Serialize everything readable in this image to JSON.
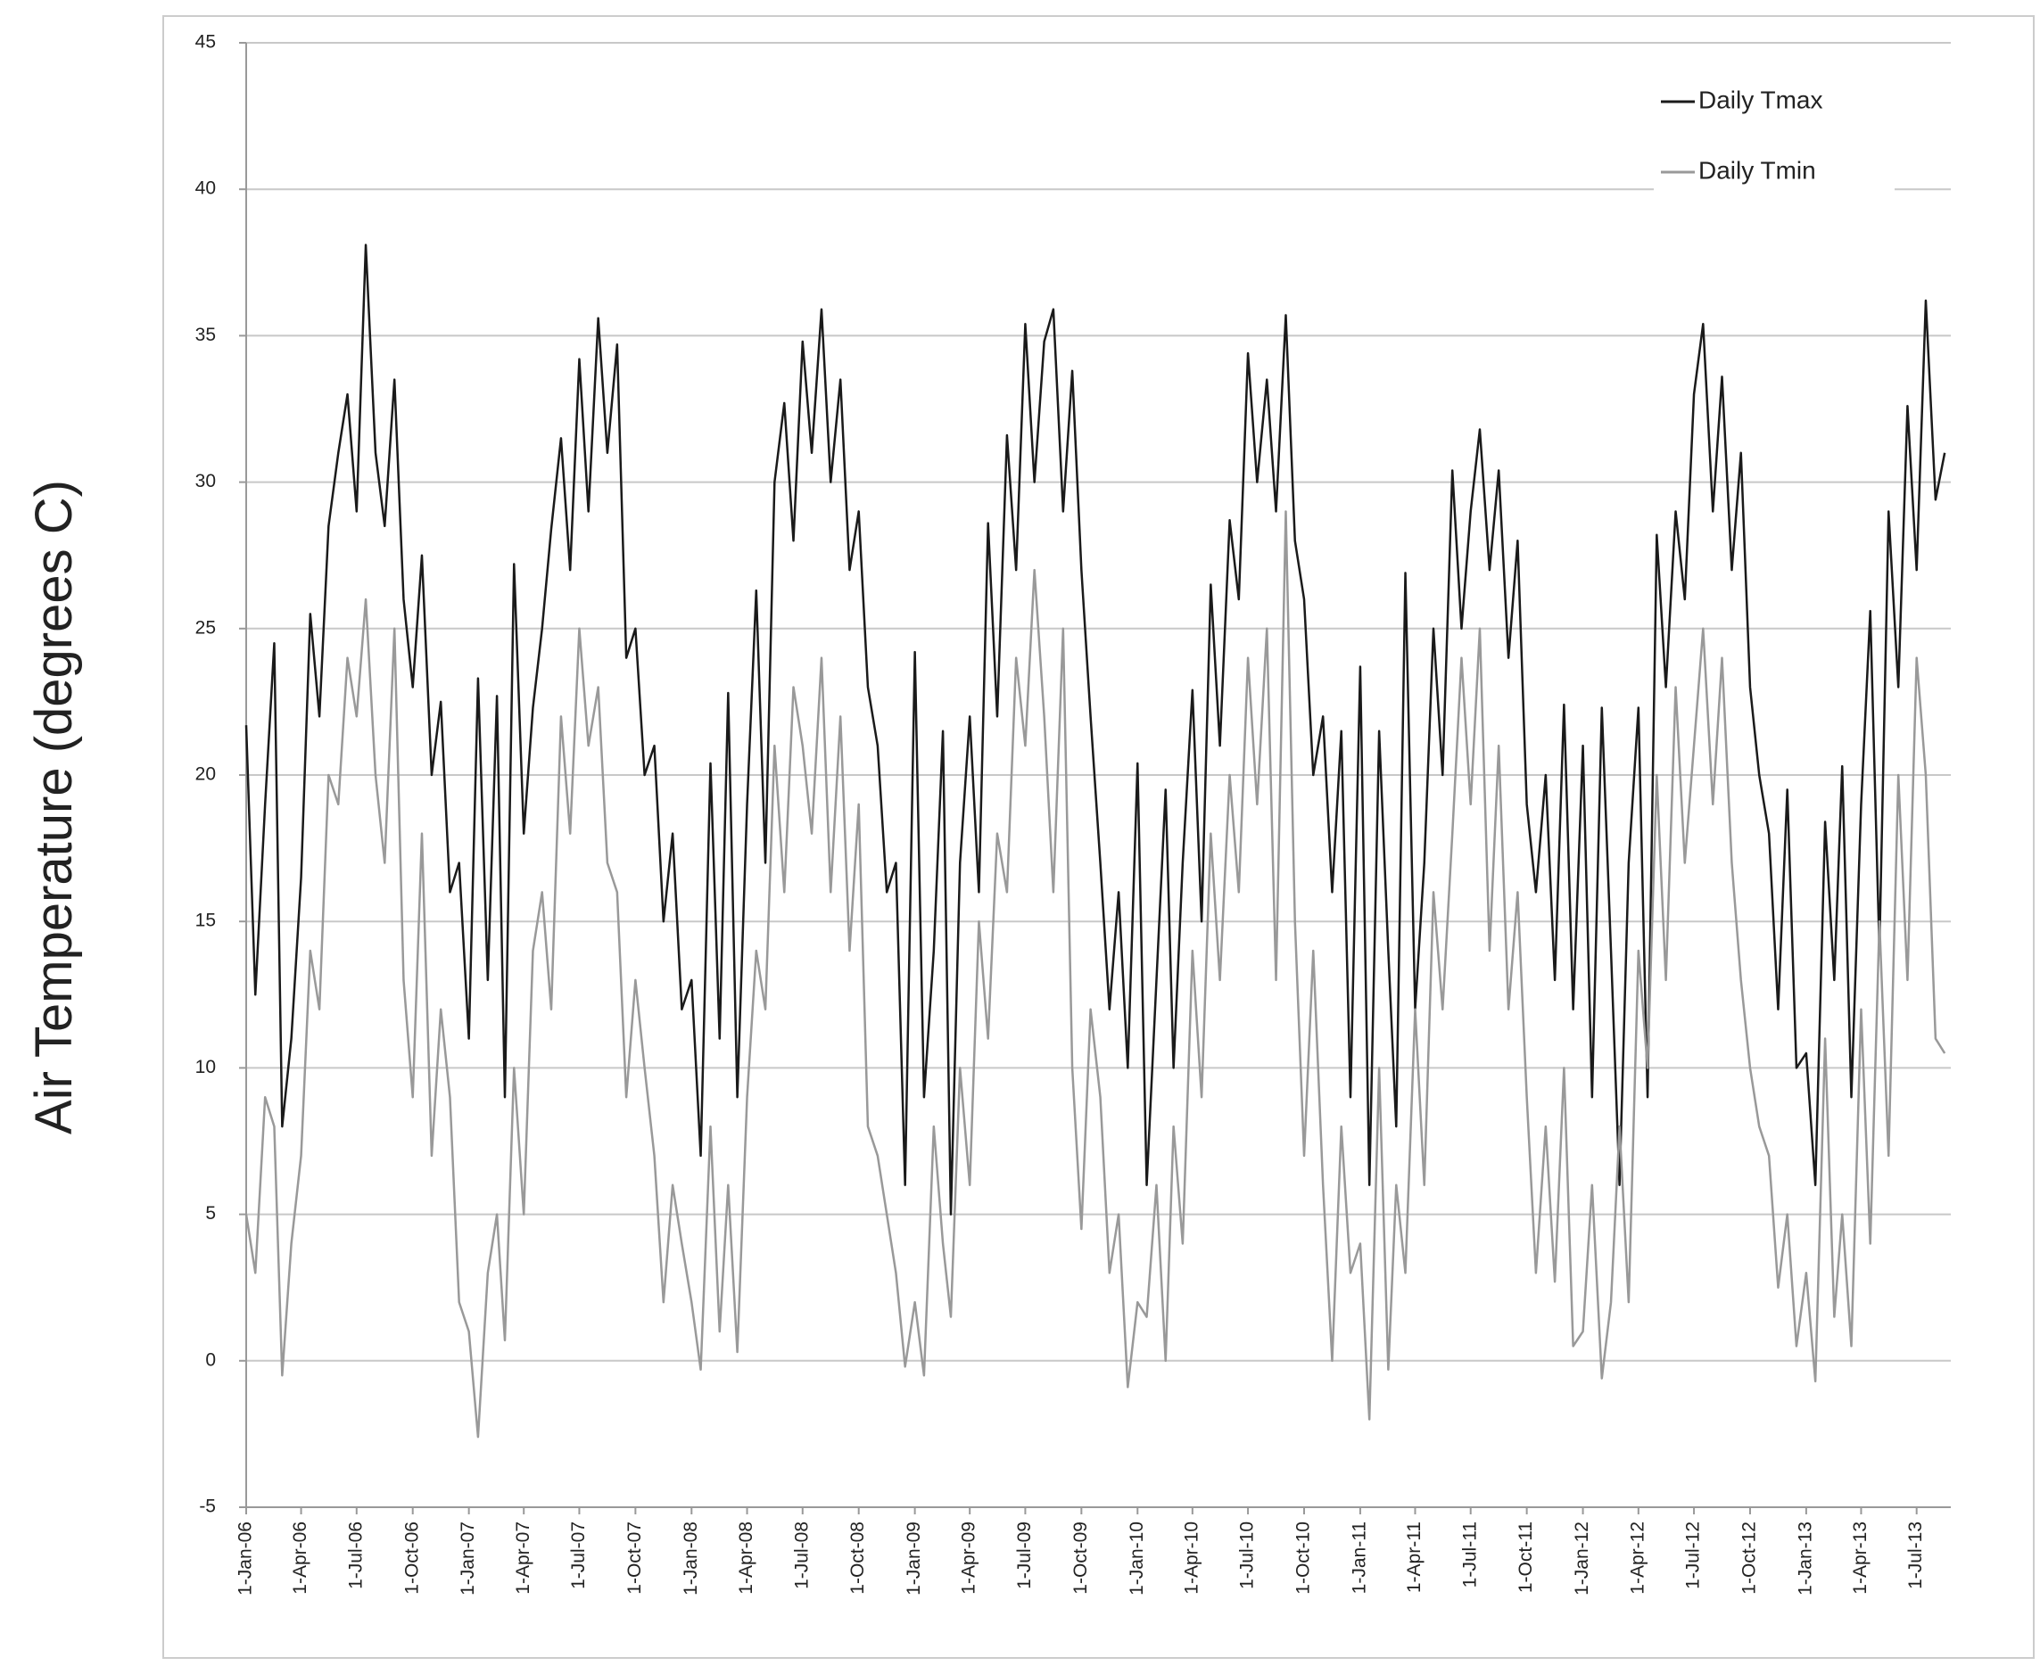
{
  "chart_data": {
    "type": "line",
    "ylabel": "Air Temperature (degrees C)",
    "x": [
      "2006-01-01",
      "2006-01-16",
      "2006-02-01",
      "2006-02-16",
      "2006-03-01",
      "2006-03-16",
      "2006-04-01",
      "2006-04-16",
      "2006-05-01",
      "2006-05-16",
      "2006-06-01",
      "2006-06-16",
      "2006-07-01",
      "2006-07-16",
      "2006-08-01",
      "2006-08-16",
      "2006-09-01",
      "2006-09-16",
      "2006-10-01",
      "2006-10-16",
      "2006-11-01",
      "2006-11-16",
      "2006-12-01",
      "2006-12-16",
      "2007-01-01",
      "2007-01-16",
      "2007-02-01",
      "2007-02-16",
      "2007-03-01",
      "2007-03-16",
      "2007-04-01",
      "2007-04-16",
      "2007-05-01",
      "2007-05-16",
      "2007-06-01",
      "2007-06-16",
      "2007-07-01",
      "2007-07-16",
      "2007-08-01",
      "2007-08-16",
      "2007-09-01",
      "2007-09-16",
      "2007-10-01",
      "2007-10-16",
      "2007-11-01",
      "2007-11-16",
      "2007-12-01",
      "2007-12-16",
      "2008-01-01",
      "2008-01-16",
      "2008-02-01",
      "2008-02-16",
      "2008-03-01",
      "2008-03-16",
      "2008-04-01",
      "2008-04-16",
      "2008-05-01",
      "2008-05-16",
      "2008-06-01",
      "2008-06-16",
      "2008-07-01",
      "2008-07-16",
      "2008-08-01",
      "2008-08-16",
      "2008-09-01",
      "2008-09-16",
      "2008-10-01",
      "2008-10-16",
      "2008-11-01",
      "2008-11-16",
      "2008-12-01",
      "2008-12-16",
      "2009-01-01",
      "2009-01-16",
      "2009-02-01",
      "2009-02-16",
      "2009-03-01",
      "2009-03-16",
      "2009-04-01",
      "2009-04-16",
      "2009-05-01",
      "2009-05-16",
      "2009-06-01",
      "2009-06-16",
      "2009-07-01",
      "2009-07-16",
      "2009-08-01",
      "2009-08-16",
      "2009-09-01",
      "2009-09-16",
      "2009-10-01",
      "2009-10-16",
      "2009-11-01",
      "2009-11-16",
      "2009-12-01",
      "2009-12-16",
      "2010-01-01",
      "2010-01-16",
      "2010-02-01",
      "2010-02-16",
      "2010-03-01",
      "2010-03-16",
      "2010-04-01",
      "2010-04-16",
      "2010-05-01",
      "2010-05-16",
      "2010-06-01",
      "2010-06-16",
      "2010-07-01",
      "2010-07-16",
      "2010-08-01",
      "2010-08-16",
      "2010-09-01",
      "2010-09-16",
      "2010-10-01",
      "2010-10-16",
      "2010-11-01",
      "2010-11-16",
      "2010-12-01",
      "2010-12-16",
      "2011-01-01",
      "2011-01-16",
      "2011-02-01",
      "2011-02-16",
      "2011-03-01",
      "2011-03-16",
      "2011-04-01",
      "2011-04-16",
      "2011-05-01",
      "2011-05-16",
      "2011-06-01",
      "2011-06-16",
      "2011-07-01",
      "2011-07-16",
      "2011-08-01",
      "2011-08-16",
      "2011-09-01",
      "2011-09-16",
      "2011-10-01",
      "2011-10-16",
      "2011-11-01",
      "2011-11-16",
      "2011-12-01",
      "2011-12-16",
      "2012-01-01",
      "2012-01-16",
      "2012-02-01",
      "2012-02-16",
      "2012-03-01",
      "2012-03-16",
      "2012-04-01",
      "2012-04-16",
      "2012-05-01",
      "2012-05-16",
      "2012-06-01",
      "2012-06-16",
      "2012-07-01",
      "2012-07-16",
      "2012-08-01",
      "2012-08-16",
      "2012-09-01",
      "2012-09-16",
      "2012-10-01",
      "2012-10-16",
      "2012-11-01",
      "2012-11-16",
      "2012-12-01",
      "2012-12-16",
      "2013-01-01",
      "2013-01-16",
      "2013-02-01",
      "2013-02-16",
      "2013-03-01",
      "2013-03-16",
      "2013-04-01",
      "2013-04-16",
      "2013-05-01",
      "2013-05-16",
      "2013-06-01",
      "2013-06-16",
      "2013-07-01",
      "2013-07-16",
      "2013-08-01",
      "2013-08-16"
    ],
    "series": [
      {
        "name": "Daily Tmax",
        "color": "#1a1a1a",
        "values": [
          21.7,
          12.5,
          19,
          24.5,
          8,
          11,
          16.5,
          25.5,
          22,
          28.5,
          31,
          33,
          29,
          38.1,
          31,
          28.5,
          33.5,
          26,
          23,
          27.5,
          20,
          22.5,
          16,
          17,
          11,
          23.3,
          13,
          22.7,
          9,
          27.2,
          18,
          22.3,
          25,
          28.4,
          31.5,
          27,
          34.2,
          29,
          35.6,
          31,
          34.7,
          24,
          25,
          20,
          21,
          15,
          18,
          12,
          13,
          7,
          20.4,
          11,
          22.8,
          9,
          19,
          26.3,
          17,
          30,
          32.7,
          28,
          34.8,
          31,
          35.9,
          30,
          33.5,
          27,
          29,
          23,
          21,
          16,
          17,
          6,
          24.2,
          9,
          14,
          21.5,
          5,
          17,
          22,
          16,
          28.6,
          22,
          31.6,
          27,
          35.4,
          30,
          34.8,
          35.9,
          29,
          33.8,
          27,
          22,
          17,
          12,
          16,
          10,
          20.4,
          6,
          13,
          19.5,
          10,
          17,
          22.9,
          15,
          26.5,
          21,
          28.7,
          26,
          34.4,
          30,
          33.5,
          29,
          35.7,
          28,
          26,
          20,
          22,
          16,
          21.5,
          9,
          23.7,
          6,
          21.5,
          14,
          8,
          26.9,
          12,
          17,
          25,
          20,
          30.4,
          25,
          29,
          31.8,
          27,
          30.4,
          24,
          28,
          19,
          16,
          20,
          13,
          22.4,
          12,
          21,
          9,
          22.3,
          14,
          6,
          17,
          22.3,
          9,
          28.2,
          23,
          29,
          26,
          33,
          35.4,
          29,
          33.6,
          27,
          31,
          23,
          20,
          18,
          12,
          19.5,
          10,
          10.5,
          6,
          18.4,
          13,
          20.3,
          9,
          19,
          25.6,
          14,
          29,
          23,
          32.6,
          27,
          36.2,
          29.4,
          31
        ]
      },
      {
        "name": "Daily Tmin",
        "color": "#999999",
        "values": [
          5,
          3,
          9,
          8,
          -0.5,
          4,
          7,
          14,
          12,
          20,
          19,
          24,
          22,
          26,
          20,
          17,
          25,
          13,
          9,
          18,
          7,
          12,
          9,
          2,
          1,
          -2.6,
          3,
          5,
          0.7,
          10,
          5,
          14,
          16,
          12,
          22,
          18,
          25,
          21,
          23,
          17,
          16,
          9,
          13,
          10,
          7,
          2,
          6,
          4,
          2,
          -0.3,
          8,
          1,
          6,
          0.3,
          9,
          14,
          12,
          21,
          16,
          23,
          21,
          18,
          24,
          16,
          22,
          14,
          19,
          8,
          7,
          5,
          3,
          -0.2,
          2,
          -0.5,
          8,
          4,
          1.5,
          10,
          6,
          15,
          11,
          18,
          16,
          24,
          21,
          27,
          22,
          16,
          25,
          10,
          4.5,
          12,
          9,
          3,
          5,
          -0.9,
          2,
          1.5,
          6,
          0,
          8,
          4,
          14,
          9,
          18,
          13,
          20,
          16,
          24,
          19,
          25,
          13,
          29,
          15,
          7,
          14,
          6,
          0,
          8,
          3,
          4,
          -2,
          10,
          -0.3,
          6,
          3,
          12,
          6,
          16,
          12,
          18,
          24,
          19,
          25,
          14,
          21,
          12,
          16,
          9,
          3,
          8,
          2.7,
          10,
          0.5,
          1,
          6,
          -0.6,
          2,
          8,
          2,
          14,
          10,
          20,
          13,
          23,
          17,
          21,
          25,
          19,
          24,
          17,
          13,
          10,
          8,
          7,
          2.5,
          5,
          0.5,
          3,
          -0.7,
          11,
          1.5,
          5,
          0.5,
          12,
          4,
          15,
          7,
          20,
          13,
          24,
          20,
          11,
          10.5
        ]
      }
    ],
    "xlim": [
      "2006-01-01",
      "2013-08-26"
    ],
    "xticks": [
      {
        "value": "2006-01-01",
        "label": "1-Jan-06"
      },
      {
        "value": "2006-04-01",
        "label": "1-Apr-06"
      },
      {
        "value": "2006-07-01",
        "label": "1-Jul-06"
      },
      {
        "value": "2006-10-01",
        "label": "1-Oct-06"
      },
      {
        "value": "2007-01-01",
        "label": "1-Jan-07"
      },
      {
        "value": "2007-04-01",
        "label": "1-Apr-07"
      },
      {
        "value": "2007-07-01",
        "label": "1-Jul-07"
      },
      {
        "value": "2007-10-01",
        "label": "1-Oct-07"
      },
      {
        "value": "2008-01-01",
        "label": "1-Jan-08"
      },
      {
        "value": "2008-04-01",
        "label": "1-Apr-08"
      },
      {
        "value": "2008-07-01",
        "label": "1-Jul-08"
      },
      {
        "value": "2008-10-01",
        "label": "1-Oct-08"
      },
      {
        "value": "2009-01-01",
        "label": "1-Jan-09"
      },
      {
        "value": "2009-04-01",
        "label": "1-Apr-09"
      },
      {
        "value": "2009-07-01",
        "label": "1-Jul-09"
      },
      {
        "value": "2009-10-01",
        "label": "1-Oct-09"
      },
      {
        "value": "2010-01-01",
        "label": "1-Jan-10"
      },
      {
        "value": "2010-04-01",
        "label": "1-Apr-10"
      },
      {
        "value": "2010-07-01",
        "label": "1-Jul-10"
      },
      {
        "value": "2010-10-01",
        "label": "1-Oct-10"
      },
      {
        "value": "2011-01-01",
        "label": "1-Jan-11"
      },
      {
        "value": "2011-04-01",
        "label": "1-Apr-11"
      },
      {
        "value": "2011-07-01",
        "label": "1-Jul-11"
      },
      {
        "value": "2011-10-01",
        "label": "1-Oct-11"
      },
      {
        "value": "2012-01-01",
        "label": "1-Jan-12"
      },
      {
        "value": "2012-04-01",
        "label": "1-Apr-12"
      },
      {
        "value": "2012-07-01",
        "label": "1-Jul-12"
      },
      {
        "value": "2012-10-01",
        "label": "1-Oct-12"
      },
      {
        "value": "2013-01-01",
        "label": "1-Jan-13"
      },
      {
        "value": "2013-04-01",
        "label": "1-Apr-13"
      },
      {
        "value": "2013-07-01",
        "label": "1-Jul-13"
      }
    ],
    "ylim": [
      -5,
      45
    ],
    "yticks": [
      -5,
      0,
      5,
      10,
      15,
      20,
      25,
      30,
      35,
      40,
      45
    ],
    "grid": true,
    "legend": "upper right"
  }
}
